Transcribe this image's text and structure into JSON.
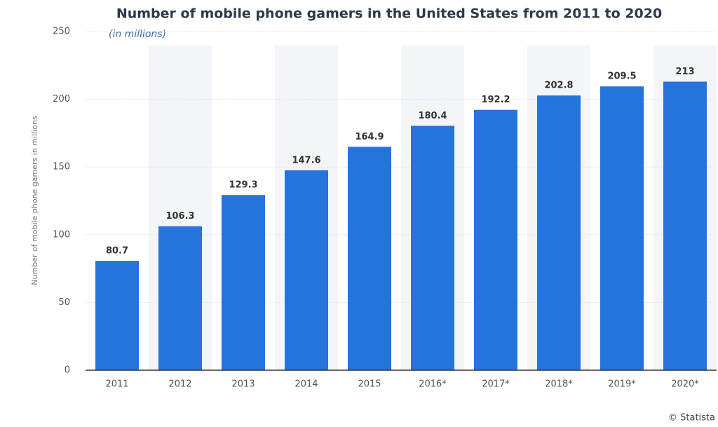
{
  "chart_data": {
    "type": "bar",
    "title": "Number of mobile phone gamers in the United States from 2011 to 2020",
    "subtitle": "(in millions)",
    "y_label": "Number of mobile phone gamers in millions",
    "credit": "© Statista",
    "categories": [
      "2011",
      "2012",
      "2013",
      "2014",
      "2015",
      "2016*",
      "2017*",
      "2018*",
      "2019*",
      "2020*"
    ],
    "values": [
      80.7,
      106.3,
      129.3,
      147.6,
      164.9,
      180.4,
      192.2,
      202.8,
      209.5,
      213
    ],
    "color": "#2474db",
    "ylim": [
      0,
      250
    ],
    "yticks": [
      0,
      50,
      100,
      150,
      200,
      250
    ],
    "grid": true
  }
}
